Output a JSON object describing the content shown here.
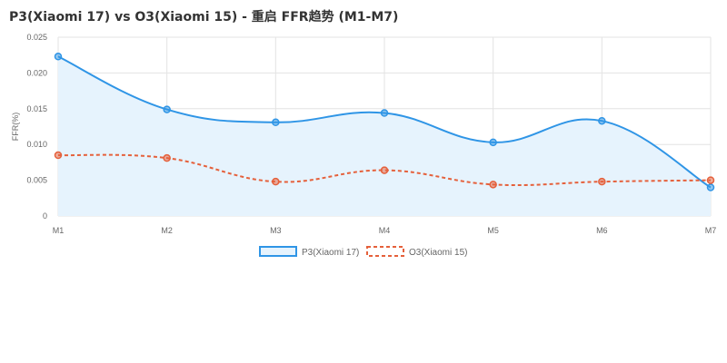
{
  "chart_data": {
    "type": "line",
    "title": "P3(Xiaomi 17) vs O3(Xiaomi 15) - 重启 FFR趋势 (M1-M7)",
    "xlabel": "",
    "ylabel": "FFR(%)",
    "categories": [
      "M1",
      "M2",
      "M3",
      "M4",
      "M5",
      "M6",
      "M7"
    ],
    "ylim": [
      0,
      0.025
    ],
    "yticks": [
      "0",
      "0.005",
      "0.010",
      "0.015",
      "0.020",
      "0.025"
    ],
    "grid": true,
    "legend_position": "bottom",
    "series": [
      {
        "name": "P3(Xiaomi 17)",
        "values": [
          0.0223,
          0.0149,
          0.0131,
          0.0144,
          0.0103,
          0.0133,
          0.004
        ],
        "color": "#2f95e6",
        "fill": "#e6f3fd",
        "style": "solid"
      },
      {
        "name": "O3(Xiaomi 15)",
        "values": [
          0.0085,
          0.0081,
          0.0048,
          0.0064,
          0.0044,
          0.0048,
          0.005
        ],
        "color": "#e5603b",
        "style": "dashed"
      }
    ]
  }
}
